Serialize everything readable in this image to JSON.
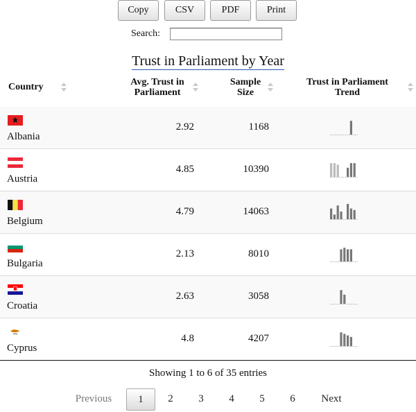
{
  "toolbar": {
    "copy": "Copy",
    "csv": "CSV",
    "pdf": "PDF",
    "print": "Print"
  },
  "search": {
    "label": "Search:",
    "value": ""
  },
  "table": {
    "title": "Trust in Parliament by Year",
    "columns": {
      "country": "Country",
      "trust_line1": "Avg. Trust in",
      "trust_line2": "Parliament",
      "sample_line1": "Sample",
      "sample_line2": "Size",
      "trend_line1": "Trust in Parliament",
      "trend_line2": "Trend"
    },
    "rows": [
      {
        "country": "Albania",
        "flag": "albania",
        "trust": "2.92",
        "sample": "1168",
        "trend": [
          0,
          0,
          0,
          0,
          0,
          0,
          0.9,
          0
        ]
      },
      {
        "country": "Austria",
        "flag": "austria",
        "trust": "4.85",
        "sample": "10390",
        "trend": [
          0.9,
          0.9,
          0.8,
          0,
          0,
          0.6,
          0.9,
          0.9
        ]
      },
      {
        "country": "Belgium",
        "flag": "belgium",
        "trust": "4.79",
        "sample": "14063",
        "trend": [
          0.7,
          0.3,
          0.9,
          0.5,
          0,
          1.0,
          0.7,
          0.6
        ]
      },
      {
        "country": "Bulgaria",
        "flag": "bulgaria",
        "trust": "2.13",
        "sample": "8010",
        "trend": [
          0,
          0,
          0,
          0.8,
          0.9,
          0.8,
          0.8,
          0
        ]
      },
      {
        "country": "Croatia",
        "flag": "croatia",
        "trust": "2.63",
        "sample": "3058",
        "trend": [
          0,
          0,
          0,
          0.9,
          0.6,
          0,
          0,
          0
        ]
      },
      {
        "country": "Cyprus",
        "flag": "cyprus",
        "trust": "4.8",
        "sample": "4207",
        "trend": [
          0,
          0,
          0,
          0.9,
          0.8,
          0.7,
          0.6,
          0
        ]
      }
    ]
  },
  "info": "Showing 1 to 6 of 35 entries",
  "pagination": {
    "previous": "Previous",
    "next": "Next",
    "pages": [
      "1",
      "2",
      "3",
      "4",
      "5",
      "6"
    ],
    "current": "1"
  },
  "colors": {
    "title_underline": "#2a5db0",
    "spark_bar": "#777777",
    "spark_bar_light": "#bbbbbb",
    "spark_base": "#aaaaaa"
  }
}
